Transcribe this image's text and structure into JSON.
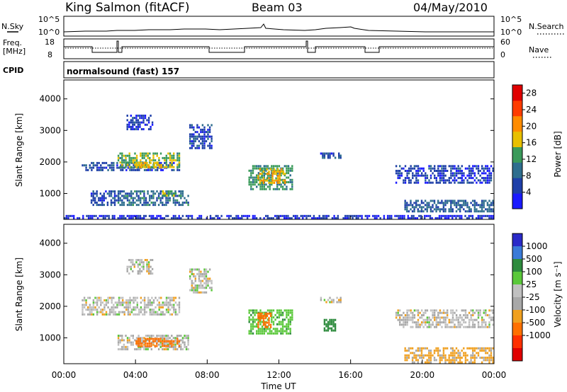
{
  "header": {
    "station": "King Salmon (fitACF)",
    "beam": "Beam 03",
    "date": "04/May/2010"
  },
  "sky_panel": {
    "left_label": "N.Sky",
    "right_label": "N.Search",
    "left_ticks": [
      "10^5",
      "10^0"
    ],
    "right_ticks": [
      "10^5",
      "10^0"
    ]
  },
  "freq_panel": {
    "label_line1": "Freq.",
    "label_line2": "[MHz]",
    "left_ticks": [
      "18",
      "8"
    ],
    "right_ticks": [
      "60",
      "0"
    ],
    "right_label": "Nave"
  },
  "cpid_panel": {
    "label": "CPID",
    "text": "normalsound (fast) 157"
  },
  "colors": {
    "power_scale": [
      "#1a1aff",
      "#1e3fa8",
      "#2e6e8e",
      "#3a9a5a",
      "#e8c000",
      "#ff8c00",
      "#ff3c00",
      "#e00000"
    ],
    "velocity_scale": [
      "#2a2ac8",
      "#3a7ad8",
      "#2e8b3e",
      "#5ac83a",
      "#c0c0c0",
      "#a8a8a8",
      "#f0a020",
      "#ff7000",
      "#ff3000",
      "#e00000"
    ]
  },
  "chart_data": [
    {
      "type": "heatmap",
      "panel": "power",
      "xlabel": "",
      "ylabel": "Slant Range [km]",
      "y_ticks": [
        "1000",
        "2000",
        "3000",
        "4000"
      ],
      "ylim": [
        180,
        4600
      ],
      "colorbar_label": "Power [dB]",
      "colorbar_ticks": [
        "4",
        "8",
        "12",
        "16",
        "20",
        "24",
        "28"
      ],
      "colorbar_range": [
        0,
        30
      ],
      "regions": [
        {
          "t0": 1.0,
          "t1": 6.5,
          "r0": 1700,
          "r1": 2000,
          "value": 6
        },
        {
          "t0": 3.0,
          "t1": 6.5,
          "r0": 1800,
          "r1": 2300,
          "value": 14
        },
        {
          "t0": 4.0,
          "t1": 5.5,
          "r0": 1800,
          "r1": 2000,
          "value": 18
        },
        {
          "t0": 1.5,
          "t1": 3.0,
          "r0": 600,
          "r1": 1100,
          "value": 6
        },
        {
          "t0": 3.0,
          "t1": 7.0,
          "r0": 600,
          "r1": 1100,
          "value": 9
        },
        {
          "t0": 5.5,
          "t1": 6.5,
          "r0": 900,
          "r1": 1100,
          "value": 14
        },
        {
          "t0": 3.5,
          "t1": 5.0,
          "r0": 3000,
          "r1": 3500,
          "value": 5
        },
        {
          "t0": 7.0,
          "t1": 8.3,
          "r0": 2400,
          "r1": 3200,
          "value": 6
        },
        {
          "t0": 10.3,
          "t1": 12.8,
          "r0": 1100,
          "r1": 1900,
          "value": 12
        },
        {
          "t0": 10.8,
          "t1": 12.4,
          "r0": 1300,
          "r1": 1800,
          "value": 17
        },
        {
          "t0": 14.3,
          "t1": 15.5,
          "r0": 2100,
          "r1": 2300,
          "value": 6
        },
        {
          "t0": 18.5,
          "t1": 24.0,
          "r0": 1300,
          "r1": 1900,
          "value": 5
        },
        {
          "t0": 19.0,
          "t1": 24.0,
          "r0": 400,
          "r1": 800,
          "value": 8
        },
        {
          "t0": 0.0,
          "t1": 24.0,
          "r0": 180,
          "r1": 320,
          "value": 4
        }
      ]
    },
    {
      "type": "heatmap",
      "panel": "velocity",
      "xlabel": "Time UT",
      "ylabel": "Slant Range [km]",
      "x_ticks": [
        "00:00",
        "04:00",
        "08:00",
        "12:00",
        "16:00",
        "20:00",
        "00:00"
      ],
      "xlim": [
        0,
        24
      ],
      "y_ticks": [
        "1000",
        "2000",
        "3000",
        "4000"
      ],
      "ylim": [
        180,
        4600
      ],
      "colorbar_label": "Velocity [m s⁻¹]",
      "colorbar_ticks": [
        "1000",
        "500",
        "100",
        "25",
        "-25",
        "-100",
        "-500",
        "-1000"
      ],
      "regions": [
        {
          "t0": 1.0,
          "t1": 6.5,
          "r0": 1700,
          "r1": 2300,
          "value": 0
        },
        {
          "t0": 3.0,
          "t1": 7.0,
          "r0": 600,
          "r1": 1100,
          "value": 0
        },
        {
          "t0": 4.0,
          "t1": 6.5,
          "r0": 700,
          "r1": 1000,
          "value": -400
        },
        {
          "t0": 3.5,
          "t1": 5.0,
          "r0": 3000,
          "r1": 3500,
          "value": 0
        },
        {
          "t0": 7.0,
          "t1": 8.3,
          "r0": 2400,
          "r1": 3200,
          "value": 0
        },
        {
          "t0": 10.3,
          "t1": 12.8,
          "r0": 1100,
          "r1": 1900,
          "value": 80
        },
        {
          "t0": 10.8,
          "t1": 11.6,
          "r0": 1300,
          "r1": 1800,
          "value": -300
        },
        {
          "t0": 14.3,
          "t1": 15.5,
          "r0": 2100,
          "r1": 2300,
          "value": 0
        },
        {
          "t0": 14.5,
          "t1": 15.2,
          "r0": 1200,
          "r1": 1600,
          "value": 150
        },
        {
          "t0": 18.5,
          "t1": 24.0,
          "r0": 1300,
          "r1": 1900,
          "value": 0
        },
        {
          "t0": 19.0,
          "t1": 24.0,
          "r0": 180,
          "r1": 700,
          "value": -40
        }
      ]
    }
  ]
}
